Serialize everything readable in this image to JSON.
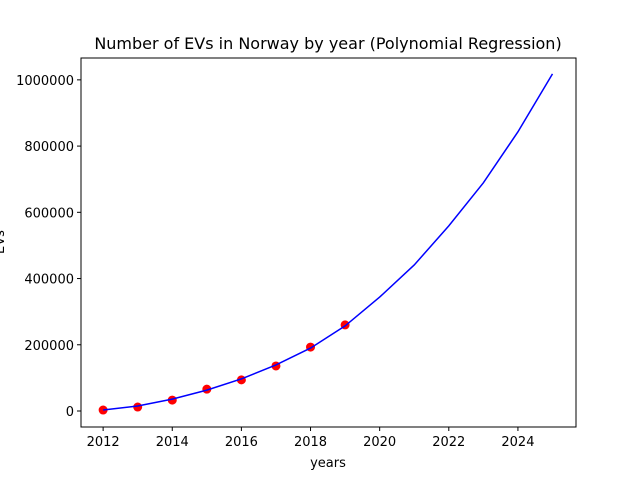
{
  "chart_data": {
    "type": "line",
    "title": "Number of EVs in Norway by year (Polynomial Regression)",
    "xlabel": "years",
    "ylabel": "EVs",
    "xlim": [
      2011.36,
      2025.68
    ],
    "ylim": [
      -48300,
      1066000
    ],
    "xticks": [
      2012,
      2014,
      2016,
      2018,
      2020,
      2022,
      2024
    ],
    "yticks": [
      0,
      200000,
      400000,
      600000,
      800000,
      1000000
    ],
    "series": [
      {
        "type": "scatter",
        "color": "#ff0000",
        "x": [
          2012,
          2013,
          2014,
          2015,
          2016,
          2017,
          2018,
          2019
        ],
        "values": [
          3000,
          12000,
          33000,
          66000,
          94000,
          136000,
          193000,
          260000
        ]
      },
      {
        "type": "line",
        "color": "#0000ff",
        "x": [
          2012,
          2013,
          2014,
          2015,
          2016,
          2017,
          2018,
          2019,
          2020,
          2021,
          2022,
          2023,
          2024,
          2025
        ],
        "values": [
          3000,
          15000,
          36000,
          63000,
          97000,
          139000,
          190000,
          257000,
          344000,
          441000,
          559000,
          689000,
          843000,
          1018000
        ]
      }
    ]
  }
}
